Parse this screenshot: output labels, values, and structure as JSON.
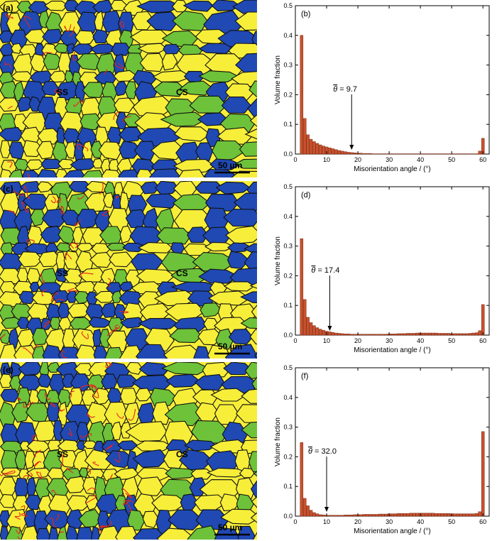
{
  "panels": [
    {
      "map_label": "(a)",
      "chart_label": "(b)",
      "ss_label": "SS",
      "cs_label": "CS",
      "scale_label": "50 µm",
      "annotation": "= 9.7",
      "annotation_symbol": "θ",
      "arrow_x": 18,
      "chart_data": {
        "type": "bar",
        "xlabel": "Misorientation angle / (°)",
        "ylabel": "Volume fraction",
        "xlim": [
          0,
          62
        ],
        "ylim": [
          0,
          0.5
        ],
        "xticks": [
          0,
          10,
          20,
          30,
          40,
          50,
          60
        ],
        "yticks": [
          0.0,
          0.1,
          0.2,
          0.3,
          0.4,
          0.5
        ],
        "x": [
          2,
          3,
          4,
          5,
          6,
          7,
          8,
          9,
          10,
          11,
          12,
          13,
          14,
          15,
          16,
          17,
          18,
          19,
          20,
          21,
          22,
          23,
          24,
          25,
          26,
          27,
          28,
          29,
          30,
          31,
          32,
          33,
          34,
          35,
          36,
          37,
          38,
          39,
          40,
          41,
          42,
          43,
          44,
          45,
          46,
          47,
          48,
          49,
          50,
          51,
          52,
          53,
          54,
          55,
          56,
          57,
          58,
          59,
          60
        ],
        "values": [
          0.4,
          0.12,
          0.065,
          0.05,
          0.042,
          0.036,
          0.031,
          0.027,
          0.024,
          0.021,
          0.018,
          0.015,
          0.012,
          0.01,
          0.008,
          0.006,
          0.005,
          0.004,
          0.003,
          0.003,
          0.002,
          0.002,
          0.002,
          0.001,
          0.001,
          0.001,
          0.001,
          0.001,
          0.001,
          0.001,
          0.001,
          0.001,
          0.001,
          0.001,
          0.001,
          0.001,
          0.001,
          0.001,
          0.001,
          0.001,
          0.001,
          0.001,
          0.001,
          0.001,
          0.001,
          0.001,
          0.001,
          0.001,
          0.001,
          0.001,
          0.001,
          0.001,
          0.001,
          0.001,
          0.001,
          0.001,
          0.001,
          0.01,
          0.053
        ]
      }
    },
    {
      "map_label": "(c)",
      "chart_label": "(d)",
      "ss_label": "SS",
      "cs_label": "CS",
      "scale_label": "50 µm",
      "annotation": "= 17.4",
      "annotation_symbol": "θ",
      "arrow_x": 11,
      "chart_data": {
        "type": "bar",
        "xlabel": "Misorientation angle / (°)",
        "ylabel": "Volume fraction",
        "xlim": [
          0,
          62
        ],
        "ylim": [
          0,
          0.5
        ],
        "xticks": [
          0,
          10,
          20,
          30,
          40,
          50,
          60
        ],
        "yticks": [
          0.0,
          0.1,
          0.2,
          0.3,
          0.4,
          0.5
        ],
        "x": [
          2,
          3,
          4,
          5,
          6,
          7,
          8,
          9,
          10,
          11,
          12,
          13,
          14,
          15,
          16,
          17,
          18,
          19,
          20,
          21,
          22,
          23,
          24,
          25,
          26,
          27,
          28,
          29,
          30,
          31,
          32,
          33,
          34,
          35,
          36,
          37,
          38,
          39,
          40,
          41,
          42,
          43,
          44,
          45,
          46,
          47,
          48,
          49,
          50,
          51,
          52,
          53,
          54,
          55,
          56,
          57,
          58,
          59,
          60
        ],
        "values": [
          0.325,
          0.12,
          0.06,
          0.042,
          0.032,
          0.025,
          0.02,
          0.016,
          0.013,
          0.011,
          0.009,
          0.007,
          0.006,
          0.005,
          0.004,
          0.004,
          0.003,
          0.003,
          0.003,
          0.003,
          0.003,
          0.003,
          0.003,
          0.003,
          0.003,
          0.003,
          0.003,
          0.003,
          0.004,
          0.004,
          0.004,
          0.005,
          0.005,
          0.005,
          0.006,
          0.006,
          0.006,
          0.007,
          0.007,
          0.007,
          0.007,
          0.007,
          0.007,
          0.007,
          0.006,
          0.006,
          0.006,
          0.006,
          0.005,
          0.005,
          0.005,
          0.005,
          0.005,
          0.005,
          0.006,
          0.007,
          0.008,
          0.015,
          0.103
        ]
      }
    },
    {
      "map_label": "(e)",
      "chart_label": "(f)",
      "ss_label": "SS",
      "cs_label": "CS",
      "scale_label": "50 µm",
      "annotation": "= 32.0",
      "annotation_symbol": "θ",
      "arrow_x": 10,
      "chart_data": {
        "type": "bar",
        "xlabel": "Misorientation angle / (°)",
        "ylabel": "Volume fraction",
        "xlim": [
          0,
          62
        ],
        "ylim": [
          0,
          0.5
        ],
        "xticks": [
          0,
          10,
          20,
          30,
          40,
          50,
          60
        ],
        "yticks": [
          0.0,
          0.1,
          0.2,
          0.3,
          0.4,
          0.5
        ],
        "x": [
          2,
          3,
          4,
          5,
          6,
          7,
          8,
          9,
          10,
          11,
          12,
          13,
          14,
          15,
          16,
          17,
          18,
          19,
          20,
          21,
          22,
          23,
          24,
          25,
          26,
          27,
          28,
          29,
          30,
          31,
          32,
          33,
          34,
          35,
          36,
          37,
          38,
          39,
          40,
          41,
          42,
          43,
          44,
          45,
          46,
          47,
          48,
          49,
          50,
          51,
          52,
          53,
          54,
          55,
          56,
          57,
          58,
          59,
          60
        ],
        "values": [
          0.248,
          0.06,
          0.035,
          0.02,
          0.012,
          0.008,
          0.005,
          0.004,
          0.003,
          0.003,
          0.003,
          0.003,
          0.003,
          0.003,
          0.004,
          0.004,
          0.004,
          0.005,
          0.005,
          0.005,
          0.006,
          0.006,
          0.006,
          0.006,
          0.006,
          0.007,
          0.007,
          0.007,
          0.008,
          0.008,
          0.008,
          0.009,
          0.009,
          0.009,
          0.009,
          0.01,
          0.01,
          0.01,
          0.01,
          0.01,
          0.01,
          0.01,
          0.01,
          0.009,
          0.009,
          0.009,
          0.009,
          0.009,
          0.008,
          0.008,
          0.008,
          0.008,
          0.008,
          0.008,
          0.008,
          0.008,
          0.009,
          0.015,
          0.285
        ]
      }
    }
  ],
  "colors": {
    "bar_fill": "#c8512e",
    "bar_stroke": "#7a2a12",
    "blue": "#2049b3",
    "yellow": "#f7ee3a",
    "green": "#6dc23a",
    "boundary_black": "#111111",
    "boundary_red": "#e3261c"
  }
}
